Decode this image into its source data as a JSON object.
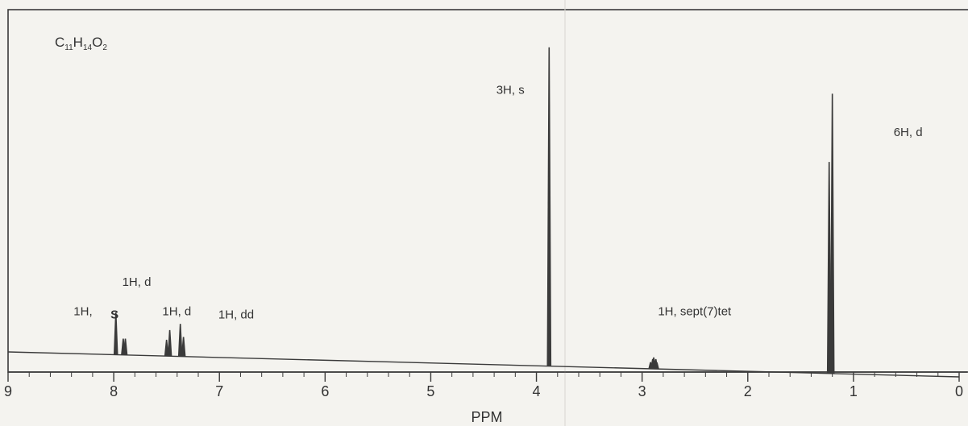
{
  "chart_data": {
    "type": "line",
    "title": "",
    "formula": {
      "main": "C",
      "n1": "11",
      "mid": "H",
      "n2": "14",
      "end": "O",
      "n3": "2"
    },
    "xlabel": "PPM",
    "ylabel": "",
    "xlim": [
      9,
      0
    ],
    "x_reversed": true,
    "ylim": [
      0,
      1
    ],
    "grid": false,
    "legend": "none",
    "x_ticks": [
      "9",
      "8",
      "7",
      "6",
      "5",
      "4",
      "3",
      "2",
      "1",
      "0"
    ],
    "line_color": "#3a3a3a",
    "series": [
      {
        "peaks": [
          {
            "ppm": 7.98,
            "height": 0.13,
            "multiplicity": "s"
          },
          {
            "ppm": 7.91,
            "height": 0.05,
            "multiplicity": "d"
          },
          {
            "ppm": 7.89,
            "height": 0.05,
            "multiplicity": "d"
          },
          {
            "ppm": 7.5,
            "height": 0.05,
            "multiplicity": "d"
          },
          {
            "ppm": 7.47,
            "height": 0.08,
            "multiplicity": "d"
          },
          {
            "ppm": 7.37,
            "height": 0.1,
            "multiplicity": "dd"
          },
          {
            "ppm": 7.34,
            "height": 0.06,
            "multiplicity": "dd"
          },
          {
            "ppm": 3.88,
            "height": 0.98,
            "multiplicity": "s"
          },
          {
            "ppm": 2.92,
            "height": 0.02,
            "multiplicity": "sept"
          },
          {
            "ppm": 2.9,
            "height": 0.03,
            "multiplicity": "sept"
          },
          {
            "ppm": 2.89,
            "height": 0.035,
            "multiplicity": "sept"
          },
          {
            "ppm": 2.87,
            "height": 0.03,
            "multiplicity": "sept"
          },
          {
            "ppm": 2.86,
            "height": 0.02,
            "multiplicity": "sept"
          },
          {
            "ppm": 1.23,
            "height": 0.65,
            "multiplicity": "d"
          },
          {
            "ppm": 1.2,
            "height": 0.86,
            "multiplicity": "d"
          }
        ]
      }
    ],
    "annotations": [
      {
        "text": "3H, s",
        "ppm": 4.38,
        "y": 0.83
      },
      {
        "text": "6H, d",
        "ppm": 0.62,
        "y": 0.7
      },
      {
        "text": "1H, d",
        "ppm": 7.92,
        "y": 0.24
      },
      {
        "text": "1H,",
        "ppm": 8.38,
        "y": 0.15
      },
      {
        "text": "S",
        "ppm": 8.03,
        "y": 0.14,
        "bold": true
      },
      {
        "text": "1H, d",
        "ppm": 7.54,
        "y": 0.15
      },
      {
        "text": "1H, dd",
        "ppm": 7.01,
        "y": 0.14
      },
      {
        "text": "1H, sept(7)tet",
        "ppm": 2.85,
        "y": 0.15
      }
    ]
  }
}
